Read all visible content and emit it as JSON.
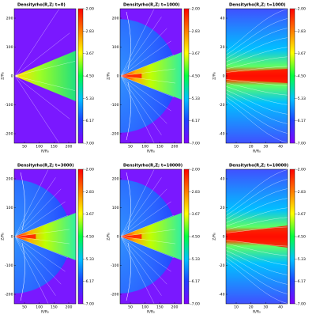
{
  "panels": [
    {
      "label": "Density:",
      "title": "rho(R,Z; t=0)",
      "yticks": [
        "200",
        "100",
        "0",
        "-100",
        "-200"
      ],
      "xticks": [
        "50",
        "100",
        "150",
        "200"
      ],
      "ylabel": "Z/R₀",
      "xlabel": "R/R₀",
      "cbar": [
        "-2.00",
        "-2.83",
        "-3.67",
        "-4.50",
        "-5.33",
        "-6.17",
        "-7.00"
      ]
    },
    {
      "label": "Density:",
      "title": "rho(R,Z; t=1000)",
      "yticks": [
        "200",
        "100",
        "0",
        "-100",
        "-200"
      ],
      "xticks": [
        "50",
        "100",
        "150",
        "200"
      ],
      "ylabel": "Z/R₀",
      "xlabel": "R/R₀",
      "cbar": [
        "-2.00",
        "-2.83",
        "-3.67",
        "-4.50",
        "-5.33",
        "-6.17",
        "-7.00"
      ]
    },
    {
      "label": "Density:",
      "title": "rho(R,Z; t=1000)",
      "yticks": [
        "40",
        "20",
        "0",
        "-20",
        "-40"
      ],
      "xticks": [
        "10",
        "20",
        "30",
        "40"
      ],
      "ylabel": "Z/R₀",
      "xlabel": "R/R₀",
      "cbar": [
        "-2.00",
        "-2.83",
        "-3.67",
        "-4.50",
        "-5.33",
        "-6.17",
        "-7.00"
      ]
    },
    {
      "label": "Density:",
      "title": "rho(R,Z; t=3000)",
      "yticks": [
        "200",
        "100",
        "0",
        "-100",
        "-200"
      ],
      "xticks": [
        "50",
        "100",
        "150",
        "200"
      ],
      "ylabel": "Z/R₀",
      "xlabel": "R/R₀",
      "cbar": [
        "-2.00",
        "-2.83",
        "-3.67",
        "-4.50",
        "-5.33",
        "-6.17",
        "-7.00"
      ]
    },
    {
      "label": "Density:",
      "title": "rho(R,Z; t=10000)",
      "yticks": [
        "200",
        "100",
        "0",
        "-100",
        "-200"
      ],
      "xticks": [
        "50",
        "100",
        "150",
        "200"
      ],
      "ylabel": "Z/R₀",
      "xlabel": "R/R₀",
      "cbar": [
        "-2.00",
        "-2.83",
        "-3.67",
        "-4.50",
        "-5.33",
        "-6.17",
        "-7.00"
      ]
    },
    {
      "label": "Density:",
      "title": "rho(R,Z; t=10000)",
      "yticks": [
        "40",
        "20",
        "0",
        "-20",
        "-40"
      ],
      "xticks": [
        "10",
        "20",
        "30",
        "40"
      ],
      "ylabel": "Z/R₀",
      "xlabel": "R/R₀",
      "cbar": [
        "-2.00",
        "-2.83",
        "-3.67",
        "-4.50",
        "-5.33",
        "-6.17",
        "-7.00"
      ]
    }
  ]
}
